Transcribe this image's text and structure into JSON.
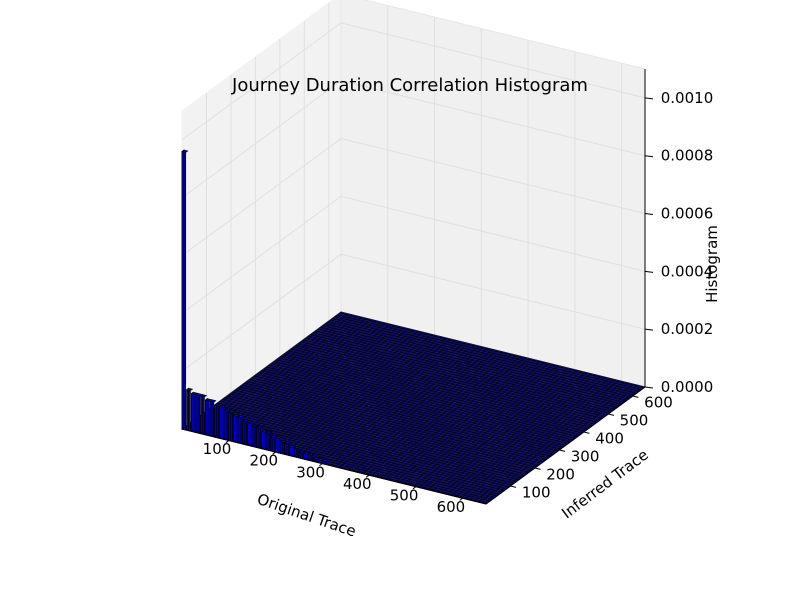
{
  "chart_data": {
    "type": "bar3d",
    "title": "Journey Duration Correlation Histogram",
    "xlabel": "Original Trace",
    "ylabel": "Inferred Trace",
    "zlabel": "Histogram",
    "xlim": [
      0,
      650
    ],
    "ylim": [
      0,
      650
    ],
    "zlim": [
      0,
      0.0011
    ],
    "xticks": [
      "100",
      "200",
      "300",
      "400",
      "500",
      "600"
    ],
    "yticks": [
      "100",
      "200",
      "300",
      "400",
      "500",
      "600"
    ],
    "zticks": [
      "0.0000",
      "0.0002",
      "0.0004",
      "0.0006",
      "0.0008",
      "0.0010"
    ],
    "grid": true,
    "bar_color": "#0000ff",
    "bars_x0": [
      {
        "original": 0,
        "inferred": 0,
        "value": 0.00096
      },
      {
        "original": 10,
        "inferred": 0,
        "value": 0.00014
      },
      {
        "original": 20,
        "inferred": 0,
        "value": 0.00013
      },
      {
        "original": 30,
        "inferred": 0,
        "value": 0.00013
      },
      {
        "original": 40,
        "inferred": 0,
        "value": 0.00013
      },
      {
        "original": 50,
        "inferred": 0,
        "value": 0.00012
      },
      {
        "original": 60,
        "inferred": 0,
        "value": 0.00012
      },
      {
        "original": 70,
        "inferred": 0,
        "value": 0.00011
      },
      {
        "original": 80,
        "inferred": 0,
        "value": 0.00011
      },
      {
        "original": 90,
        "inferred": 0,
        "value": 0.0001
      },
      {
        "original": 100,
        "inferred": 0,
        "value": 0.0001
      },
      {
        "original": 110,
        "inferred": 0,
        "value": 9e-05
      },
      {
        "original": 120,
        "inferred": 0,
        "value": 9e-05
      },
      {
        "original": 130,
        "inferred": 0,
        "value": 8e-05
      },
      {
        "original": 140,
        "inferred": 0,
        "value": 8e-05
      },
      {
        "original": 150,
        "inferred": 0,
        "value": 7e-05
      },
      {
        "original": 160,
        "inferred": 0,
        "value": 7e-05
      },
      {
        "original": 170,
        "inferred": 0,
        "value": 6e-05
      },
      {
        "original": 180,
        "inferred": 0,
        "value": 6e-05
      },
      {
        "original": 190,
        "inferred": 0,
        "value": 5e-05
      },
      {
        "original": 200,
        "inferred": 0,
        "value": 5e-05
      },
      {
        "original": 210,
        "inferred": 0,
        "value": 4e-05
      },
      {
        "original": 220,
        "inferred": 0,
        "value": 4e-05
      },
      {
        "original": 230,
        "inferred": 0,
        "value": 3e-05
      },
      {
        "original": 240,
        "inferred": 0,
        "value": 3e-05
      },
      {
        "original": 250,
        "inferred": 0,
        "value": 2e-05
      },
      {
        "original": 260,
        "inferred": 0,
        "value": 2e-05
      },
      {
        "original": 270,
        "inferred": 0,
        "value": 2e-05
      },
      {
        "original": 280,
        "inferred": 0,
        "value": 1e-05
      },
      {
        "original": 290,
        "inferred": 0,
        "value": 1e-05
      },
      {
        "original": 300,
        "inferred": 0,
        "value": 1e-05
      }
    ]
  }
}
